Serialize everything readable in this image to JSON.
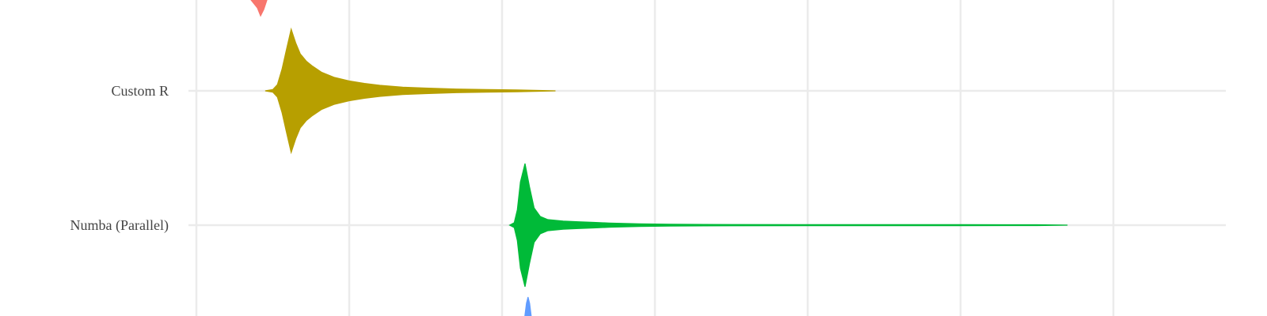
{
  "chart_data": {
    "type": "violin",
    "orientation": "horizontal",
    "grid": true,
    "legend": "none",
    "visible_categories": [
      "Custom R",
      "Numba (Parallel)"
    ],
    "series": [
      {
        "category": "",
        "color": "#F8766D",
        "partially_visible": "top edge (clipped)",
        "tip_x": 0.42
      },
      {
        "category": "Custom R",
        "color": "#B79F00",
        "x_min": 0.45,
        "x_mode": 0.62,
        "x_max": 2.35,
        "profile": [
          [
            0.45,
            0.0
          ],
          [
            0.5,
            0.02
          ],
          [
            0.53,
            0.1
          ],
          [
            0.56,
            0.35
          ],
          [
            0.59,
            0.68
          ],
          [
            0.62,
            1.0
          ],
          [
            0.65,
            0.78
          ],
          [
            0.68,
            0.6
          ],
          [
            0.72,
            0.48
          ],
          [
            0.76,
            0.4
          ],
          [
            0.82,
            0.3
          ],
          [
            0.9,
            0.22
          ],
          [
            1.0,
            0.16
          ],
          [
            1.1,
            0.12
          ],
          [
            1.2,
            0.09
          ],
          [
            1.35,
            0.06
          ],
          [
            1.5,
            0.045
          ],
          [
            1.7,
            0.03
          ],
          [
            1.9,
            0.02
          ],
          [
            2.1,
            0.015
          ],
          [
            2.35,
            0.0
          ]
        ]
      },
      {
        "category": "Numba (Parallel)",
        "color": "#00BA38",
        "x_min": 2.05,
        "x_mode": 2.15,
        "x_max": 5.7,
        "profile": [
          [
            2.05,
            0.0
          ],
          [
            2.08,
            0.04
          ],
          [
            2.1,
            0.25
          ],
          [
            2.12,
            0.7
          ],
          [
            2.15,
            1.0
          ],
          [
            2.18,
            0.62
          ],
          [
            2.21,
            0.28
          ],
          [
            2.25,
            0.14
          ],
          [
            2.3,
            0.09
          ],
          [
            2.4,
            0.065
          ],
          [
            2.5,
            0.055
          ],
          [
            2.6,
            0.045
          ],
          [
            2.7,
            0.035
          ],
          [
            2.9,
            0.022
          ],
          [
            3.1,
            0.014
          ],
          [
            3.5,
            0.01
          ],
          [
            4.0,
            0.009
          ],
          [
            4.5,
            0.008
          ],
          [
            5.0,
            0.008
          ],
          [
            5.5,
            0.007
          ],
          [
            5.7,
            0.0
          ]
        ]
      },
      {
        "category": "",
        "color": "#619CFF",
        "partially_visible": "bottom edge (clipped)",
        "tip_x": 2.17
      }
    ]
  }
}
